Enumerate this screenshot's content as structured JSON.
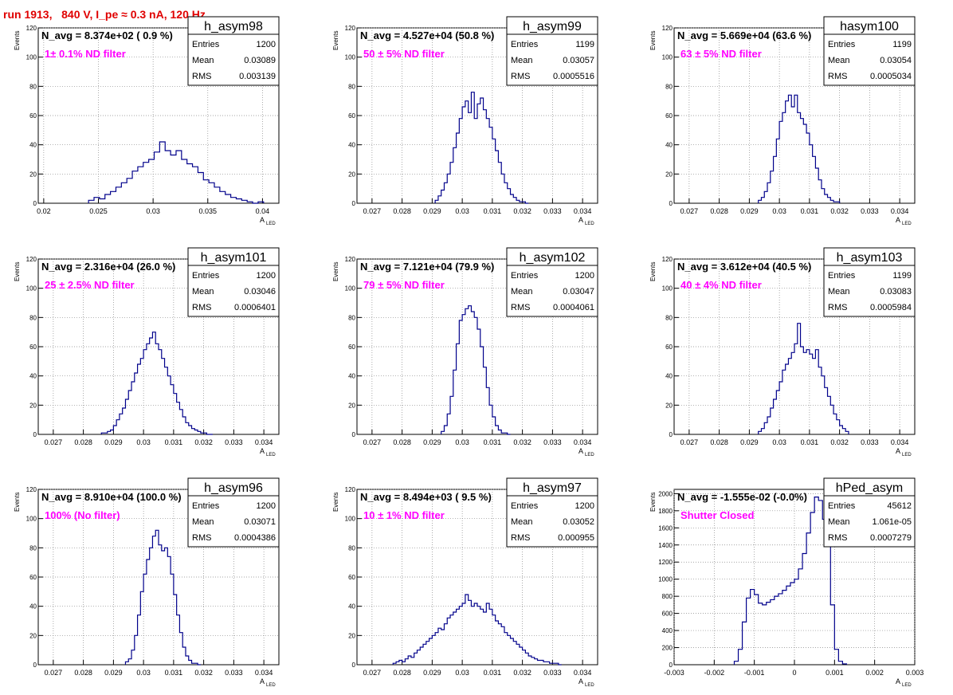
{
  "run_title": "run 1913,   840 V, I_pe ≈ 0.3 nA, 120 Hz",
  "y_axis_title": "Events",
  "x_axis_title_main": "A",
  "x_axis_title_sub": "LED",
  "stat_labels": {
    "entries": "Entries",
    "mean": "Mean",
    "rms": "RMS"
  },
  "colors": {
    "hist": "#00008b",
    "navg": "#000000",
    "filter": "#ff00ff",
    "title_red": "#e00000",
    "grid": "#888888"
  },
  "chart_data": [
    {
      "type": "histogram",
      "name": "h_asym98",
      "navg_text": "N_avg = 8.374e+02 ( 0.9 %)",
      "filter_text": "1± 0.1% ND filter",
      "entries": "1200",
      "mean": "0.03089",
      "rms": "0.003139",
      "xlim": [
        0.0195,
        0.0415
      ],
      "ylim": [
        0,
        120
      ],
      "xticks": [
        0.02,
        0.025,
        0.03,
        0.035,
        0.04
      ],
      "xtick_labels": [
        "0.02",
        "0.025",
        "0.03",
        "0.035",
        "0.04"
      ],
      "yticks": [
        20,
        40,
        60,
        80,
        100,
        120
      ],
      "bin_edges": [
        0.0241,
        0.0246,
        0.0251,
        0.0256,
        0.0261,
        0.0266,
        0.0271,
        0.0276,
        0.0281,
        0.0286,
        0.0291,
        0.0296,
        0.0301,
        0.0306,
        0.0311,
        0.0316,
        0.0321,
        0.0326,
        0.0331,
        0.0336,
        0.0341,
        0.0346,
        0.0351,
        0.0356,
        0.0361,
        0.0366,
        0.0371,
        0.0376,
        0.0381,
        0.0386,
        0.0391,
        0.0396,
        0.0401
      ],
      "counts": [
        2,
        4,
        3,
        6,
        8,
        11,
        14,
        17,
        22,
        25,
        28,
        30,
        35,
        42,
        36,
        33,
        36,
        30,
        27,
        25,
        21,
        16,
        14,
        11,
        8,
        6,
        4,
        3,
        2,
        1,
        0,
        1
      ]
    },
    {
      "type": "histogram",
      "name": "h_asym99",
      "navg_text": "N_avg = 4.527e+04 (50.8 %)",
      "filter_text": "50 ± 5% ND filter",
      "entries": "1199",
      "mean": "0.03057",
      "rms": "0.0005516",
      "xlim": [
        0.0265,
        0.0345
      ],
      "ylim": [
        0,
        120
      ],
      "xticks": [
        0.027,
        0.028,
        0.029,
        0.03,
        0.031,
        0.032,
        0.033,
        0.034
      ],
      "xtick_labels": [
        "0.027",
        "0.028",
        "0.029",
        "0.03",
        "0.031",
        "0.032",
        "0.033",
        "0.034"
      ],
      "yticks": [
        20,
        40,
        60,
        80,
        100,
        120
      ],
      "bin_edges": [
        0.0291,
        0.0292,
        0.0293,
        0.0294,
        0.0295,
        0.0296,
        0.0297,
        0.0298,
        0.0299,
        0.03,
        0.0301,
        0.0302,
        0.0303,
        0.0304,
        0.0305,
        0.0306,
        0.0307,
        0.0308,
        0.0309,
        0.031,
        0.0311,
        0.0312,
        0.0313,
        0.0314,
        0.0315,
        0.0316,
        0.0317,
        0.0318,
        0.0319,
        0.032,
        0.0321,
        0.0322
      ],
      "counts": [
        2,
        5,
        9,
        14,
        20,
        28,
        38,
        48,
        58,
        66,
        70,
        62,
        76,
        58,
        68,
        72,
        64,
        58,
        52,
        44,
        36,
        28,
        20,
        14,
        10,
        6,
        4,
        2,
        1,
        1,
        0
      ]
    },
    {
      "type": "histogram",
      "name": "hasym100",
      "navg_text": "N_avg = 5.669e+04 (63.6 %)",
      "filter_text": "63 ± 5% ND filter",
      "entries": "1199",
      "mean": "0.03054",
      "rms": "0.0005034",
      "xlim": [
        0.0265,
        0.0345
      ],
      "ylim": [
        0,
        120
      ],
      "xticks": [
        0.027,
        0.028,
        0.029,
        0.03,
        0.031,
        0.032,
        0.033,
        0.034
      ],
      "xtick_labels": [
        "0.027",
        "0.028",
        "0.029",
        "0.03",
        "0.031",
        "0.032",
        "0.033",
        "0.034"
      ],
      "yticks": [
        20,
        40,
        60,
        80,
        100,
        120
      ],
      "bin_edges": [
        0.0293,
        0.0294,
        0.0295,
        0.0296,
        0.0297,
        0.0298,
        0.0299,
        0.03,
        0.0301,
        0.0302,
        0.0303,
        0.0304,
        0.0305,
        0.0306,
        0.0307,
        0.0308,
        0.0309,
        0.031,
        0.0311,
        0.0312,
        0.0313,
        0.0314,
        0.0315,
        0.0316,
        0.0317,
        0.0318,
        0.0319,
        0.032
      ],
      "counts": [
        2,
        4,
        8,
        14,
        22,
        32,
        44,
        56,
        62,
        70,
        74,
        66,
        74,
        62,
        58,
        54,
        48,
        40,
        32,
        24,
        16,
        10,
        6,
        4,
        2,
        1,
        1
      ]
    },
    {
      "type": "histogram",
      "name": "h_asym101",
      "navg_text": "N_avg = 2.316e+04 (26.0 %)",
      "filter_text": "25 ± 2.5% ND filter",
      "entries": "1200",
      "mean": "0.03046",
      "rms": "0.0006401",
      "xlim": [
        0.0265,
        0.0345
      ],
      "ylim": [
        0,
        120
      ],
      "xticks": [
        0.027,
        0.028,
        0.029,
        0.03,
        0.031,
        0.032,
        0.033,
        0.034
      ],
      "xtick_labels": [
        "0.027",
        "0.028",
        "0.029",
        "0.03",
        "0.031",
        "0.032",
        "0.033",
        "0.034"
      ],
      "yticks": [
        20,
        40,
        60,
        80,
        100,
        120
      ],
      "bin_edges": [
        0.0286,
        0.0287,
        0.0288,
        0.0289,
        0.029,
        0.0291,
        0.0292,
        0.0293,
        0.0294,
        0.0295,
        0.0296,
        0.0297,
        0.0298,
        0.0299,
        0.03,
        0.0301,
        0.0302,
        0.0303,
        0.0304,
        0.0305,
        0.0306,
        0.0307,
        0.0308,
        0.0309,
        0.031,
        0.0311,
        0.0312,
        0.0313,
        0.0314,
        0.0315,
        0.0316,
        0.0317,
        0.0318,
        0.0319,
        0.032,
        0.0321,
        0.0322,
        0.0323
      ],
      "counts": [
        1,
        1,
        2,
        3,
        6,
        10,
        14,
        18,
        24,
        30,
        36,
        42,
        48,
        52,
        58,
        62,
        66,
        70,
        62,
        58,
        52,
        46,
        40,
        34,
        28,
        22,
        17,
        12,
        8,
        6,
        4,
        3,
        2,
        1,
        1,
        0,
        0
      ]
    },
    {
      "type": "histogram",
      "name": "h_asym102",
      "navg_text": "N_avg = 7.121e+04 (79.9 %)",
      "filter_text": "79 ± 5% ND filter",
      "entries": "1200",
      "mean": "0.03047",
      "rms": "0.0004061",
      "xlim": [
        0.0265,
        0.0345
      ],
      "ylim": [
        0,
        120
      ],
      "xticks": [
        0.027,
        0.028,
        0.029,
        0.03,
        0.031,
        0.032,
        0.033,
        0.034
      ],
      "xtick_labels": [
        "0.027",
        "0.028",
        "0.029",
        "0.03",
        "0.031",
        "0.032",
        "0.033",
        "0.034"
      ],
      "yticks": [
        20,
        40,
        60,
        80,
        100,
        120
      ],
      "bin_edges": [
        0.0293,
        0.0294,
        0.0295,
        0.0296,
        0.0297,
        0.0298,
        0.0299,
        0.03,
        0.0301,
        0.0302,
        0.0303,
        0.0304,
        0.0305,
        0.0306,
        0.0307,
        0.0308,
        0.0309,
        0.031,
        0.0311,
        0.0312,
        0.0313,
        0.0314,
        0.0315,
        0.0316
      ],
      "counts": [
        2,
        6,
        14,
        26,
        44,
        62,
        78,
        82,
        86,
        88,
        84,
        80,
        72,
        60,
        46,
        32,
        20,
        12,
        6,
        3,
        1,
        1,
        0
      ]
    },
    {
      "type": "histogram",
      "name": "h_asym103",
      "navg_text": "N_avg = 3.612e+04 (40.5 %)",
      "filter_text": "40 ± 4% ND filter",
      "entries": "1199",
      "mean": "0.03083",
      "rms": "0.0005984",
      "xlim": [
        0.0265,
        0.0345
      ],
      "ylim": [
        0,
        120
      ],
      "xticks": [
        0.027,
        0.028,
        0.029,
        0.03,
        0.031,
        0.032,
        0.033,
        0.034
      ],
      "xtick_labels": [
        "0.027",
        "0.028",
        "0.029",
        "0.03",
        "0.031",
        "0.032",
        "0.033",
        "0.034"
      ],
      "yticks": [
        20,
        40,
        60,
        80,
        100,
        120
      ],
      "bin_edges": [
        0.0293,
        0.0294,
        0.0295,
        0.0296,
        0.0297,
        0.0298,
        0.0299,
        0.03,
        0.0301,
        0.0302,
        0.0303,
        0.0304,
        0.0305,
        0.0306,
        0.0307,
        0.0308,
        0.0309,
        0.031,
        0.0311,
        0.0312,
        0.0313,
        0.0314,
        0.0315,
        0.0316,
        0.0317,
        0.0318,
        0.0319,
        0.032,
        0.0321,
        0.0322,
        0.0323
      ],
      "counts": [
        2,
        4,
        8,
        12,
        18,
        24,
        30,
        36,
        44,
        48,
        52,
        56,
        62,
        76,
        60,
        56,
        58,
        55,
        52,
        58,
        46,
        40,
        32,
        26,
        20,
        14,
        10,
        6,
        4,
        2
      ]
    },
    {
      "type": "histogram",
      "name": "h_asym96",
      "navg_text": "N_avg = 8.910e+04 (100.0 %)",
      "filter_text": "100% (No filter)",
      "entries": "1200",
      "mean": "0.03071",
      "rms": "0.0004386",
      "xlim": [
        0.0265,
        0.0345
      ],
      "ylim": [
        0,
        120
      ],
      "xticks": [
        0.027,
        0.028,
        0.029,
        0.03,
        0.031,
        0.032,
        0.033,
        0.034
      ],
      "xtick_labels": [
        "0.027",
        "0.028",
        "0.029",
        "0.03",
        "0.031",
        "0.032",
        "0.033",
        "0.034"
      ],
      "yticks": [
        20,
        40,
        60,
        80,
        100,
        120
      ],
      "bin_edges": [
        0.0294,
        0.0295,
        0.0296,
        0.0297,
        0.0298,
        0.0299,
        0.03,
        0.0301,
        0.0302,
        0.0303,
        0.0304,
        0.0305,
        0.0306,
        0.0307,
        0.0308,
        0.0309,
        0.031,
        0.0311,
        0.0312,
        0.0313,
        0.0314,
        0.0315,
        0.0316,
        0.0317,
        0.0318,
        0.0319
      ],
      "counts": [
        2,
        4,
        10,
        20,
        34,
        50,
        62,
        72,
        80,
        88,
        92,
        82,
        78,
        80,
        74,
        62,
        48,
        34,
        22,
        12,
        6,
        3,
        1,
        1,
        0
      ]
    },
    {
      "type": "histogram",
      "name": "h_asym97",
      "navg_text": "N_avg = 8.494e+03 ( 9.5 %)",
      "filter_text": "10 ± 1% ND filter",
      "entries": "1200",
      "mean": "0.03052",
      "rms": "0.000955",
      "xlim": [
        0.0265,
        0.0345
      ],
      "ylim": [
        0,
        120
      ],
      "xticks": [
        0.027,
        0.028,
        0.029,
        0.03,
        0.031,
        0.032,
        0.033,
        0.034
      ],
      "xtick_labels": [
        "0.027",
        "0.028",
        "0.029",
        "0.03",
        "0.031",
        "0.032",
        "0.033",
        "0.034"
      ],
      "yticks": [
        20,
        40,
        60,
        80,
        100,
        120
      ],
      "bin_edges": [
        0.0277,
        0.0278,
        0.0279,
        0.028,
        0.0281,
        0.0282,
        0.0283,
        0.0284,
        0.0285,
        0.0286,
        0.0287,
        0.0288,
        0.0289,
        0.029,
        0.0291,
        0.0292,
        0.0293,
        0.0294,
        0.0295,
        0.0296,
        0.0297,
        0.0298,
        0.0299,
        0.03,
        0.0301,
        0.0302,
        0.0303,
        0.0304,
        0.0305,
        0.0306,
        0.0307,
        0.0308,
        0.0309,
        0.031,
        0.0311,
        0.0312,
        0.0313,
        0.0314,
        0.0315,
        0.0316,
        0.0317,
        0.0318,
        0.0319,
        0.032,
        0.0321,
        0.0322,
        0.0323,
        0.0324,
        0.0325,
        0.0326,
        0.0327,
        0.0328,
        0.0329,
        0.033,
        0.0331,
        0.0332,
        0.0333
      ],
      "counts": [
        1,
        2,
        3,
        2,
        4,
        6,
        5,
        8,
        10,
        12,
        14,
        16,
        18,
        20,
        22,
        25,
        24,
        28,
        32,
        34,
        36,
        38,
        40,
        42,
        48,
        44,
        40,
        42,
        40,
        38,
        36,
        42,
        38,
        34,
        30,
        28,
        26,
        22,
        20,
        18,
        16,
        14,
        12,
        10,
        8,
        6,
        5,
        4,
        3,
        3,
        2,
        2,
        1,
        1,
        1,
        0
      ]
    },
    {
      "type": "histogram",
      "name": "hPed_asym",
      "navg_text": "N_avg = -1.555e-02 (-0.0%)",
      "filter_text": "Shutter Closed",
      "entries": "45612",
      "mean": "1.061e-05",
      "rms": "0.0007279",
      "xlim": [
        -0.003,
        0.003
      ],
      "ylim": [
        0,
        2050
      ],
      "xticks": [
        -0.003,
        -0.002,
        -0.001,
        0,
        0.001,
        0.002,
        0.003
      ],
      "xtick_labels": [
        "-0.003",
        "-0.002",
        "-0.001",
        "0",
        "0.001",
        "0.002",
        "0.003"
      ],
      "yticks": [
        200,
        400,
        600,
        800,
        1000,
        1200,
        1400,
        1600,
        1800,
        2000
      ],
      "bin_edges": [
        -0.0015,
        -0.0014,
        -0.0013,
        -0.0012,
        -0.0011,
        -0.001,
        -0.0009,
        -0.0008,
        -0.0007,
        -0.0006,
        -0.0005,
        -0.0004,
        -0.0003,
        -0.0002,
        -0.0001,
        0.0,
        0.0001,
        0.0002,
        0.0003,
        0.0004,
        0.0005,
        0.0006,
        0.0007,
        0.0008,
        0.0009,
        0.001,
        0.0011,
        0.0012,
        0.0013
      ],
      "counts": [
        40,
        180,
        500,
        780,
        880,
        820,
        720,
        700,
        730,
        760,
        800,
        830,
        870,
        920,
        960,
        1000,
        1120,
        1300,
        1540,
        1780,
        1960,
        1920,
        1700,
        1380,
        700,
        180,
        40,
        10
      ]
    }
  ]
}
